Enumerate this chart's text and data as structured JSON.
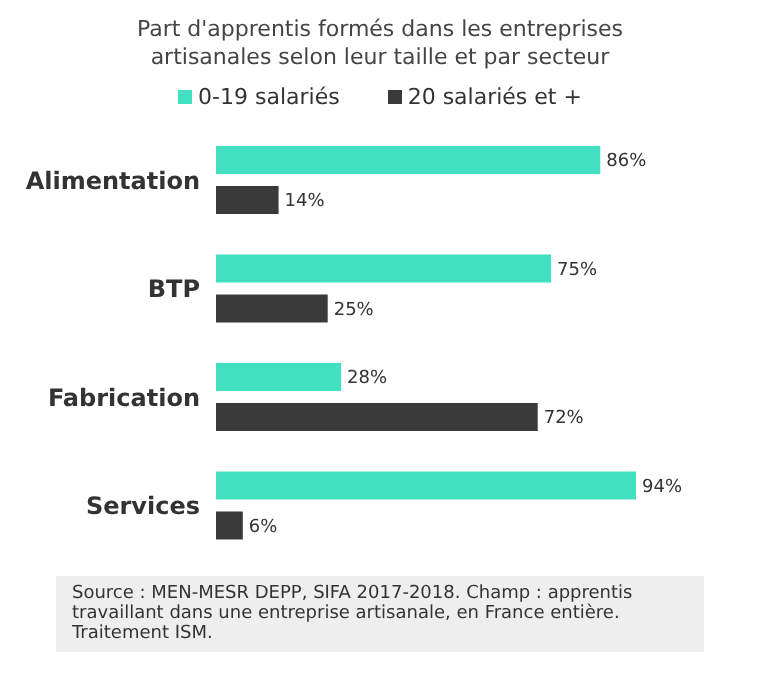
{
  "chart_data": {
    "type": "bar",
    "orientation": "horizontal",
    "tick_labels": "y",
    "title": "Part d'apprentis formés dans les entreprises artisanales selon leur taille et par secteur",
    "categories": [
      "Alimentation",
      "BTP",
      "Fabrication",
      "Services"
    ],
    "series": [
      {
        "name": "0-19 salariés",
        "color": "#40e0c0",
        "values": [
          86,
          75,
          28,
          94
        ],
        "value_labels": [
          "86%",
          "75%",
          "28%",
          "94%"
        ]
      },
      {
        "name": "20 salariés et +",
        "color": "#3a3a3a",
        "values": [
          14,
          25,
          72,
          6
        ],
        "value_labels": [
          "14%",
          "25%",
          "72%",
          "6%"
        ]
      }
    ],
    "legend": "top",
    "grid": false,
    "annotations": [
      "Source : MEN-MESR DEPP, SIFA 2017-2018. Champ : apprentis travaillant dans une entreprise artisanale, en France entière. Traitement ISM."
    ]
  }
}
